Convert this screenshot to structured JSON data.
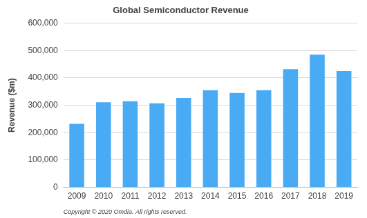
{
  "chart_data": {
    "type": "bar",
    "title": "Global Semiconductor Revenue",
    "y_label": "Revenue ($m)",
    "annotation": "Copyright © 2020 Omdia. All rights reserved.",
    "categories": [
      "2009",
      "2010",
      "2011",
      "2012",
      "2013",
      "2014",
      "2015",
      "2016",
      "2017",
      "2018",
      "2019"
    ],
    "values": [
      232000,
      311000,
      315000,
      307000,
      327000,
      355000,
      345000,
      355000,
      432000,
      485000,
      425000
    ],
    "color": "#4aabf5",
    "ylim": [
      0,
      600000
    ],
    "yticks": [
      0,
      {
        "value": 100000,
        "label": "100,000"
      },
      {
        "value": 200000,
        "label": "200,000"
      },
      {
        "value": 300000,
        "label": "300,000"
      },
      {
        "value": 400000,
        "label": "400,000"
      },
      {
        "value": 500000,
        "label": "500,000"
      },
      {
        "value": 600000,
        "label": "600,000"
      }
    ],
    "grid": true
  }
}
